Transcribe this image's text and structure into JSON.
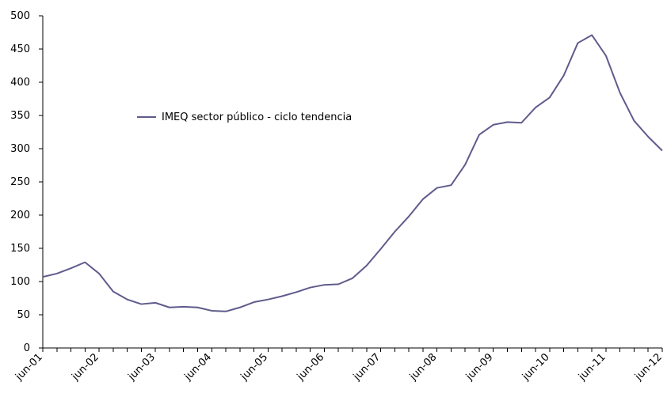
{
  "chart_data": {
    "type": "line",
    "ylim": [
      0,
      500
    ],
    "yticks": [
      0,
      50,
      100,
      150,
      200,
      250,
      300,
      350,
      400,
      450,
      500
    ],
    "xtick_labels": [
      "jun-01",
      "jun-02",
      "jun-03",
      "jun-04",
      "jun-05",
      "jun-06",
      "jun-07",
      "jun-08",
      "jun-09",
      "jun-10",
      "jun-11",
      "jun-12"
    ],
    "legend_position": "upper-left (inside plot)",
    "grid": false,
    "series": [
      {
        "name": "IMEQ sector público - ciclo tendencia",
        "color": "#5f5b8c",
        "x_quarters_from_jun01": [
          0,
          1,
          2,
          3,
          4,
          5,
          6,
          7,
          8,
          9,
          10,
          11,
          12,
          13,
          14,
          15,
          16,
          17,
          18,
          19,
          20,
          21,
          22,
          23,
          24,
          25,
          26,
          27,
          28,
          29,
          30,
          31,
          32,
          33,
          34,
          35,
          36,
          37,
          38,
          39,
          40,
          41,
          42,
          43,
          44
        ],
        "values": [
          107,
          112,
          120,
          129,
          112,
          85,
          73,
          66,
          68,
          61,
          62,
          61,
          56,
          55,
          61,
          69,
          73,
          78,
          84,
          91,
          95,
          96,
          105,
          124,
          149,
          175,
          198,
          224,
          241,
          245,
          276,
          321,
          336,
          340,
          339,
          362,
          377,
          410,
          459,
          471,
          440,
          384,
          342,
          318,
          297
        ]
      }
    ]
  }
}
